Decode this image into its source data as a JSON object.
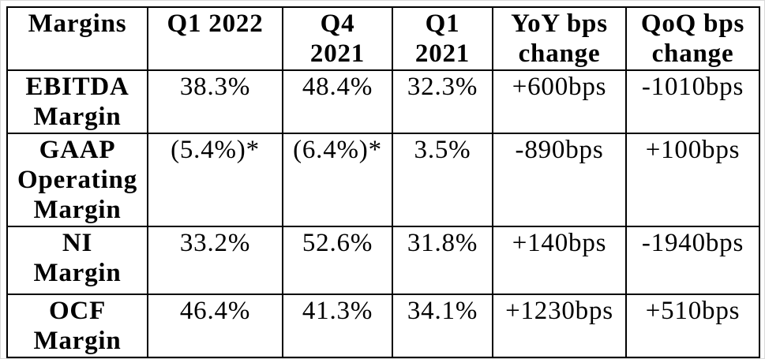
{
  "table": {
    "headers": [
      "Margins",
      "Q1 2022",
      "Q4\n2021",
      "Q1\n2021",
      "YoY bps\nchange",
      "QoQ bps\nchange"
    ],
    "rows": [
      {
        "label": "EBITDA\nMargin",
        "values": [
          "38.3%",
          "48.4%",
          "32.3%",
          "+600bps",
          "-1010bps"
        ]
      },
      {
        "label": "GAAP\nOperating\nMargin",
        "values": [
          "(5.4%)*",
          "(6.4%)*",
          "3.5%",
          "-890bps",
          "+100bps"
        ]
      },
      {
        "label": "NI\nMargin",
        "values": [
          "33.2%",
          "52.6%",
          "31.8%",
          "+140bps",
          "-1940bps"
        ]
      },
      {
        "label": "OCF\nMargin",
        "values": [
          "46.4%",
          "41.3%",
          "34.1%",
          "+1230bps",
          "+510bps"
        ]
      }
    ],
    "text_color": "#000000",
    "border_color": "#000000",
    "background_color": "#ffffff"
  }
}
